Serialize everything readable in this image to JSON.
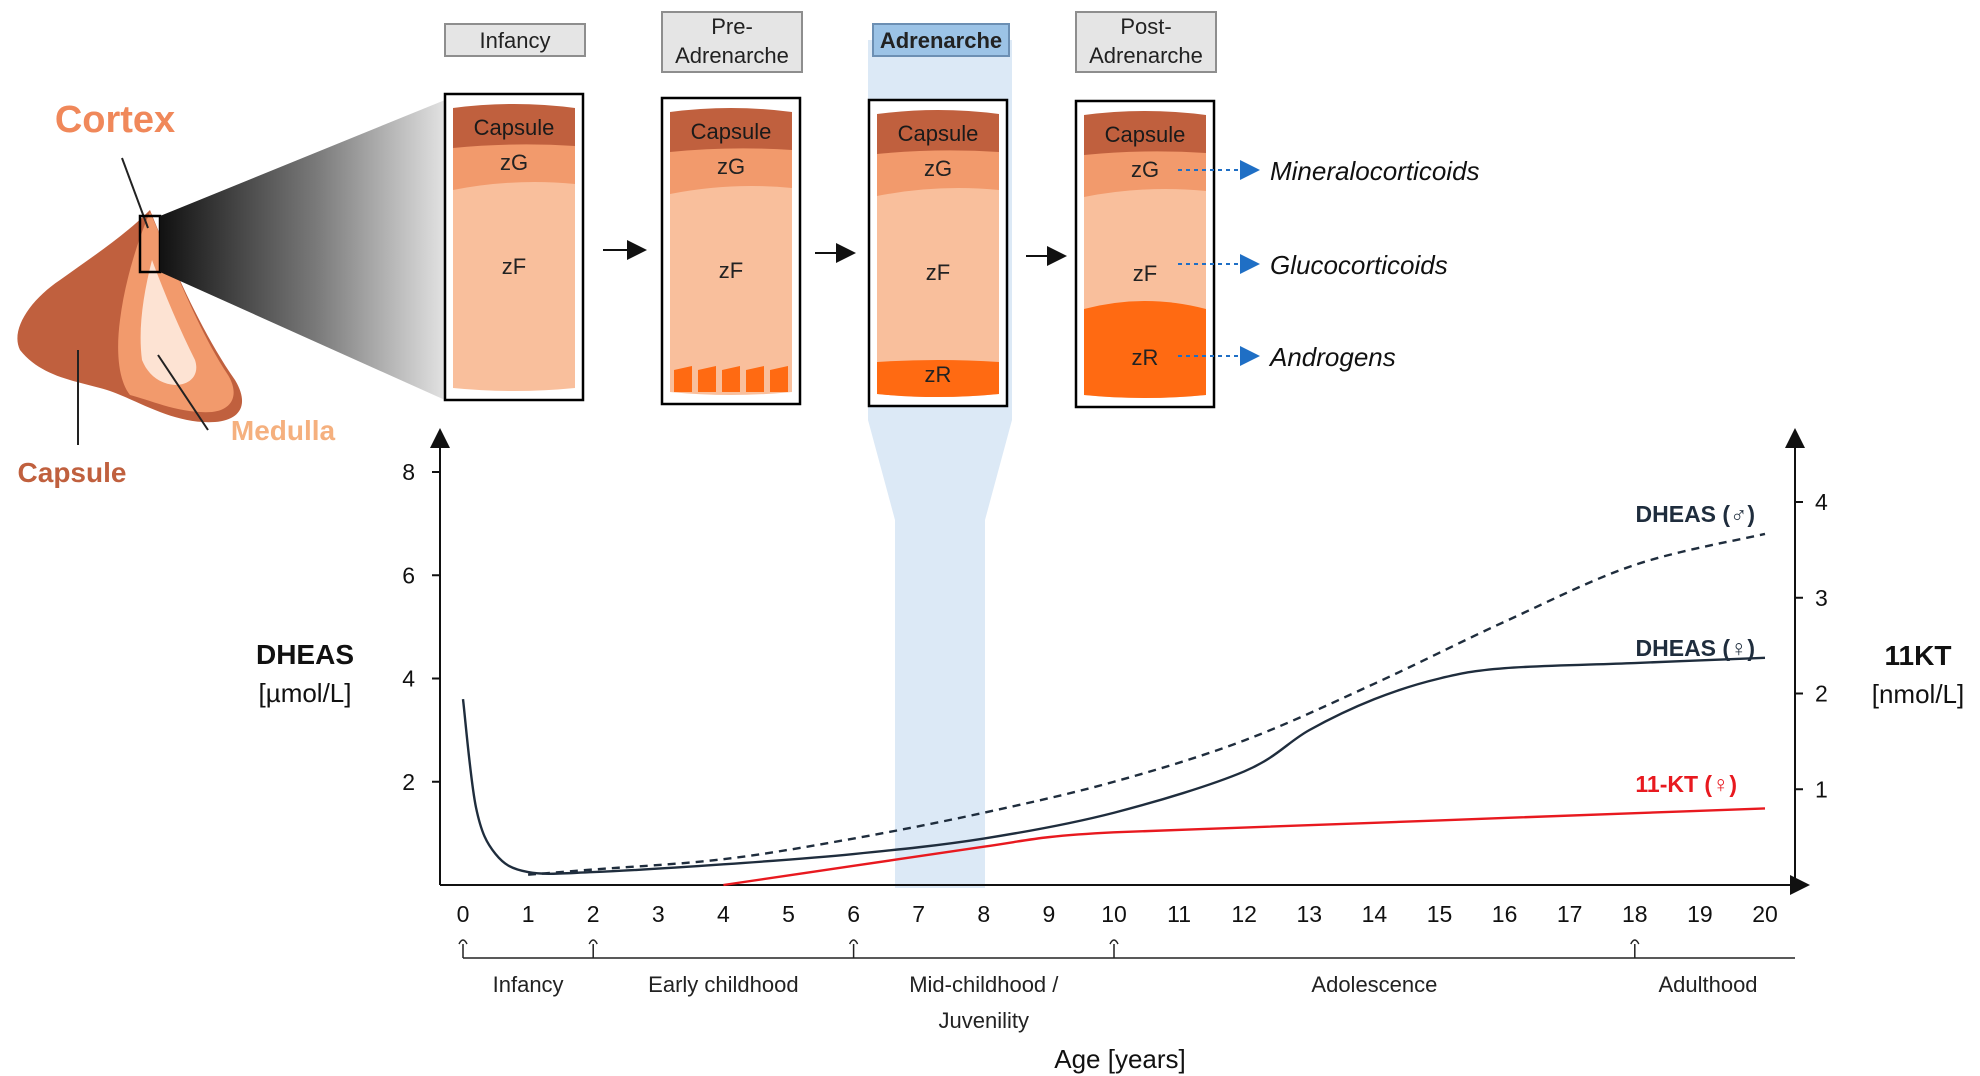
{
  "anatomy": {
    "cortex_label": "Cortex",
    "medulla_label": "Medulla",
    "capsule_label": "Capsule"
  },
  "stages": [
    {
      "name": "Infancy",
      "zones": [
        "Capsule",
        "zG",
        "zF"
      ]
    },
    {
      "name": "Pre-\nAdrenarche",
      "zones": [
        "Capsule",
        "zG",
        "zF"
      ]
    },
    {
      "name": "Adrenarche",
      "highlight": true,
      "zones": [
        "Capsule",
        "zG",
        "zF",
        "zR"
      ]
    },
    {
      "name": "Post-\nAdrenarche",
      "zones": [
        "Capsule",
        "zG",
        "zF",
        "zR"
      ]
    }
  ],
  "outputs": [
    "Mineralocorticoids",
    "Glucocorticoids",
    "Androgens"
  ],
  "colors": {
    "capsule": "#c0603e",
    "zG": "#f29a6c",
    "zF": "#f9bf9c",
    "zR": "#ff6a12",
    "highlight": "#dce9f6",
    "dheas": "#1f2d3d",
    "kt": "#e8191f",
    "arrow_blue": "#1f6fc5"
  },
  "chart_data": {
    "type": "line",
    "xlabel": "Age [years]",
    "x_ticks": [
      "0",
      "1",
      "2",
      "3",
      "4",
      "5",
      "6",
      "7",
      "8",
      "9",
      "10",
      "11",
      "12",
      "13",
      "14",
      "15",
      "16",
      "17",
      "18",
      "19",
      "20"
    ],
    "xlim": [
      0,
      20
    ],
    "y_left": {
      "label": "DHEAS",
      "unit": "[µmol/L]",
      "ticks": [
        "2",
        "4",
        "6",
        "8"
      ],
      "ylim": [
        0,
        8
      ]
    },
    "y_right": {
      "label": "11KT",
      "unit": "[nmol/L]",
      "ticks": [
        "1",
        "2",
        "3",
        "4"
      ],
      "ylim": [
        0,
        4
      ]
    },
    "phases": [
      {
        "label": "Infancy",
        "from": 0,
        "to": 2
      },
      {
        "label": "Early childhood",
        "from": 2,
        "to": 6
      },
      {
        "label": "Mid-childhood /\nJuvenility",
        "from": 6,
        "to": 10
      },
      {
        "label": "Adolescence",
        "from": 10,
        "to": 18
      },
      {
        "label": "Adulthood",
        "from": 18,
        "to": 20
      }
    ],
    "highlight_range": [
      7.75,
      9.25
    ],
    "series": [
      {
        "name": "DHEAS (♂)",
        "axis": "left",
        "style": "dashed",
        "x": [
          1,
          2,
          4,
          6,
          8,
          10,
          12,
          14,
          16,
          18,
          20
        ],
        "y": [
          0.2,
          0.3,
          0.5,
          0.9,
          1.4,
          2.0,
          2.8,
          3.9,
          5.1,
          6.2,
          6.8
        ]
      },
      {
        "name": "DHEAS (♀)",
        "axis": "left",
        "style": "solid",
        "x": [
          0,
          0.2,
          0.5,
          1,
          2,
          4,
          6,
          8,
          10,
          12,
          13,
          14,
          15,
          16,
          18,
          20
        ],
        "y": [
          3.6,
          1.5,
          0.6,
          0.25,
          0.25,
          0.4,
          0.6,
          0.9,
          1.4,
          2.2,
          3.0,
          3.6,
          4.0,
          4.2,
          4.3,
          4.4
        ]
      },
      {
        "name": "11-KT (♀)",
        "axis": "right",
        "style": "solid",
        "x": [
          4,
          6,
          8,
          9,
          10,
          12,
          14,
          16,
          18,
          20
        ],
        "y": [
          0.0,
          0.2,
          0.4,
          0.5,
          0.55,
          0.6,
          0.65,
          0.7,
          0.75,
          0.8
        ]
      }
    ]
  }
}
